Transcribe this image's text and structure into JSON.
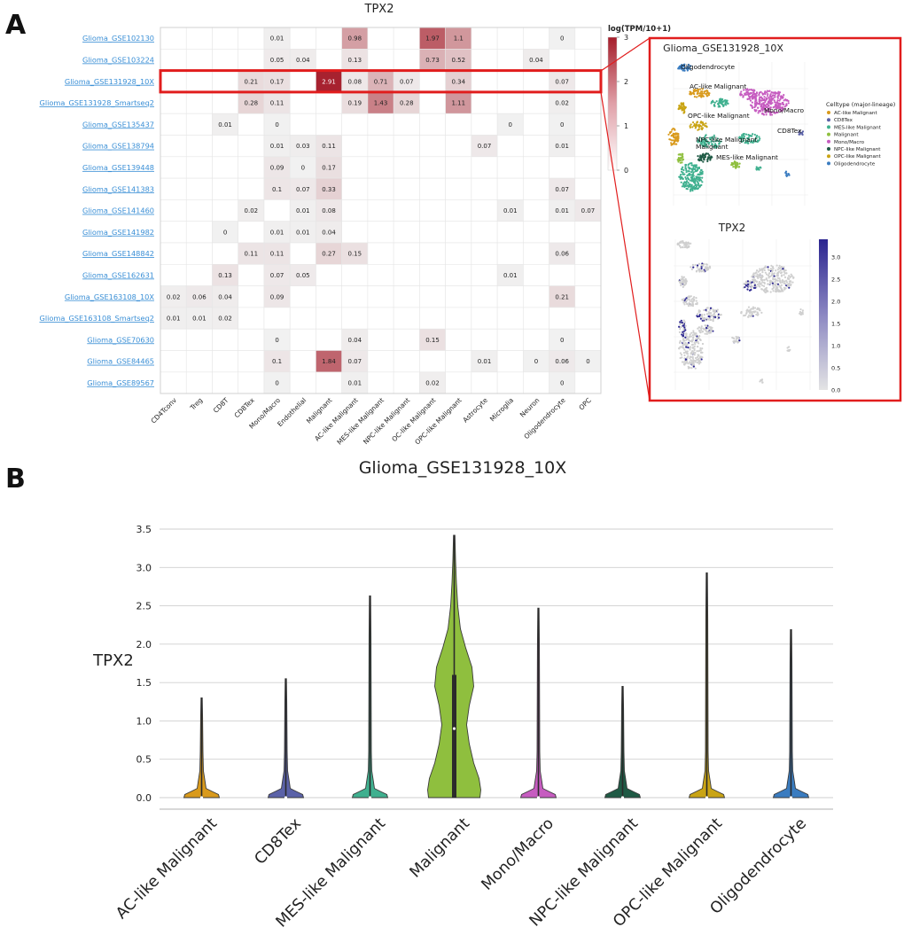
{
  "panel_labels": {
    "a": "A",
    "b": "B"
  },
  "colors": {
    "heat_max": "#a51d2a",
    "heat_min": "#ffffff",
    "link": "#3a8fd6",
    "highlight": "#e11d1d",
    "tpx2_high": "#2b2590"
  },
  "chart_data": [
    {
      "type": "heatmap",
      "title": "TPX2",
      "colorbar": {
        "label": "log(TPM/10+1)",
        "ticks": [
          "3",
          "2",
          "1",
          "0"
        ],
        "range": [
          0,
          3
        ]
      },
      "datasets": [
        "Glioma_GSE102130",
        "Glioma_GSE103224",
        "Glioma_GSE131928_10X",
        "Glioma_GSE131928_Smartseq2",
        "Glioma_GSE135437",
        "Glioma_GSE138794",
        "Glioma_GSE139448",
        "Glioma_GSE141383",
        "Glioma_GSE141460",
        "Glioma_GSE141982",
        "Glioma_GSE148842",
        "Glioma_GSE162631",
        "Glioma_GSE163108_10X",
        "Glioma_GSE163108_Smartseq2",
        "Glioma_GSE70630",
        "Glioma_GSE84465",
        "Glioma_GSE89567"
      ],
      "celltypes": [
        "CD4Tconv",
        "Treg",
        "CD8T",
        "CD8Tex",
        "Mono/Macro",
        "Endothelial",
        "Malignant",
        "AC-like Malignant",
        "MES-like Malignant",
        "NPC-like Malignant",
        "OC-like Malignant",
        "OPC-like Malignant",
        "Astrocyte",
        "Microglia",
        "Neuron",
        "Oligodendrocyte",
        "OPC"
      ],
      "highlighted_row": 2,
      "values": [
        [
          null,
          null,
          null,
          null,
          0.01,
          null,
          null,
          0.98,
          null,
          null,
          1.97,
          1.1,
          null,
          null,
          null,
          0,
          null
        ],
        [
          null,
          null,
          null,
          null,
          0.05,
          0.04,
          null,
          0.13,
          null,
          null,
          0.73,
          0.52,
          null,
          null,
          0.04,
          null,
          null
        ],
        [
          null,
          null,
          null,
          0.21,
          0.17,
          null,
          2.91,
          0.08,
          0.71,
          0.07,
          null,
          0.34,
          null,
          null,
          null,
          0.07,
          null
        ],
        [
          null,
          null,
          null,
          0.28,
          0.11,
          null,
          null,
          0.19,
          1.43,
          0.28,
          null,
          1.11,
          null,
          null,
          null,
          0.02,
          null
        ],
        [
          null,
          null,
          0.01,
          null,
          0,
          null,
          null,
          null,
          null,
          null,
          null,
          null,
          null,
          0,
          null,
          0,
          null
        ],
        [
          null,
          null,
          null,
          null,
          0.01,
          0.03,
          0.11,
          null,
          null,
          null,
          null,
          null,
          0.07,
          null,
          null,
          0.01,
          null
        ],
        [
          null,
          null,
          null,
          null,
          0.09,
          0,
          0.17,
          null,
          null,
          null,
          null,
          null,
          null,
          null,
          null,
          null,
          null
        ],
        [
          null,
          null,
          null,
          null,
          0.1,
          0.07,
          0.33,
          null,
          null,
          null,
          null,
          null,
          null,
          null,
          null,
          0.07,
          null
        ],
        [
          null,
          null,
          null,
          0.02,
          null,
          0.01,
          0.08,
          null,
          null,
          null,
          null,
          null,
          null,
          0.01,
          null,
          0.01,
          0.07
        ],
        [
          null,
          null,
          0,
          null,
          0.01,
          0.01,
          0.04,
          null,
          null,
          null,
          null,
          null,
          null,
          null,
          null,
          null,
          null
        ],
        [
          null,
          null,
          null,
          0.11,
          0.11,
          null,
          0.27,
          0.15,
          null,
          null,
          null,
          null,
          null,
          null,
          null,
          0.06,
          null
        ],
        [
          null,
          null,
          0.13,
          null,
          0.07,
          0.05,
          null,
          null,
          null,
          null,
          null,
          null,
          null,
          0.01,
          null,
          null,
          null
        ],
        [
          0.02,
          0.06,
          0.04,
          null,
          0.09,
          null,
          null,
          null,
          null,
          null,
          null,
          null,
          null,
          null,
          null,
          0.21,
          null
        ],
        [
          0.01,
          0.01,
          0.02,
          null,
          null,
          null,
          null,
          null,
          null,
          null,
          null,
          null,
          null,
          null,
          null,
          null,
          null
        ],
        [
          null,
          null,
          null,
          null,
          0,
          null,
          null,
          0.04,
          null,
          null,
          0.15,
          null,
          null,
          null,
          null,
          0,
          null
        ],
        [
          null,
          null,
          null,
          null,
          0.1,
          null,
          1.84,
          0.07,
          null,
          null,
          null,
          null,
          0.01,
          null,
          0,
          0.06,
          0
        ],
        [
          null,
          null,
          null,
          null,
          0,
          null,
          null,
          0.01,
          null,
          null,
          0.02,
          null,
          null,
          null,
          null,
          0,
          null
        ]
      ]
    },
    {
      "type": "scatter",
      "title": "Glioma_GSE131928_10X",
      "legend_title": "Celltype (major-lineage)",
      "legend_position": "right",
      "categories": [
        {
          "name": "AC-like Malignant",
          "color": "#d99a1c"
        },
        {
          "name": "CD8Tex",
          "color": "#5b62a8"
        },
        {
          "name": "MES-like Malignant",
          "color": "#3fb08f"
        },
        {
          "name": "Malignant",
          "color": "#8fbf3e"
        },
        {
          "name": "Mono/Macro",
          "color": "#c65cc0"
        },
        {
          "name": "NPC-like Malignant",
          "color": "#1f5a45"
        },
        {
          "name": "OPC-like Malignant",
          "color": "#c9a414"
        },
        {
          "name": "Oligodendrocyte",
          "color": "#3a7cc0"
        }
      ],
      "annotations": [
        "Oligodendrocyte",
        "AC-like Malignant",
        "Mono/Macro",
        "OPC-like Malignant",
        "CD8Tex",
        "NPC-like Malignant",
        "Malignant",
        "MES-like Malignant"
      ]
    },
    {
      "type": "scatter",
      "title": "TPX2",
      "colorbar": {
        "ticks": [
          "3.0",
          "2.5",
          "2.0",
          "1.5",
          "1.0",
          "0.5",
          "0.0"
        ],
        "range": [
          0,
          3.4
        ]
      }
    },
    {
      "type": "violin",
      "title": "Glioma_GSE131928_10X",
      "ylabel": "TPX2",
      "ylim": [
        0,
        3.5
      ],
      "yticks": [
        "0.0",
        "0.5",
        "1.0",
        "1.5",
        "2.0",
        "2.5",
        "3.0",
        "3.5"
      ],
      "grid": true,
      "series": [
        {
          "name": "AC-like Malignant",
          "color": "#d99a1c",
          "max": 1.3,
          "median": 0.0
        },
        {
          "name": "CD8Tex",
          "color": "#5b62a8",
          "max": 1.55,
          "median": 0.0
        },
        {
          "name": "MES-like Malignant",
          "color": "#3fb08f",
          "max": 2.63,
          "median": 0.0
        },
        {
          "name": "Malignant",
          "color": "#8fbf3e",
          "max": 3.42,
          "median": 0.9,
          "q3": 1.6
        },
        {
          "name": "Mono/Macro",
          "color": "#c65cc0",
          "max": 2.47,
          "median": 0.0
        },
        {
          "name": "NPC-like Malignant",
          "color": "#1f5a45",
          "max": 1.45,
          "median": 0.0
        },
        {
          "name": "OPC-like Malignant",
          "color": "#c9a414",
          "max": 2.93,
          "median": 0.0
        },
        {
          "name": "Oligodendrocyte",
          "color": "#3a7cc0",
          "max": 2.19,
          "median": 0.0
        }
      ]
    }
  ]
}
